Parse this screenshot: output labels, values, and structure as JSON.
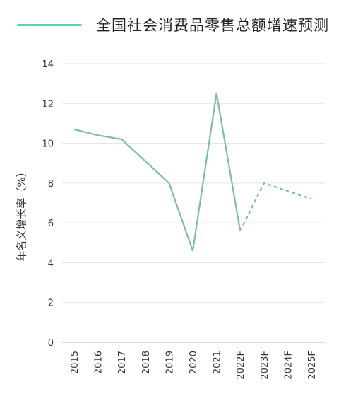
{
  "header": {
    "title": "全国社会消费品零售总额增速预测"
  },
  "accent_color": "#5fd3a6",
  "chart_data": {
    "type": "line",
    "title": "全国社会消费品零售总额增速预测",
    "ylabel": "年名义增长率（%）",
    "xlabel": "",
    "ylim": [
      0,
      14
    ],
    "yticks": [
      0,
      2,
      4,
      6,
      8,
      10,
      12,
      14
    ],
    "categories": [
      "2015",
      "2016",
      "2017",
      "2018",
      "2019",
      "2020",
      "2021",
      "2022F",
      "2023F",
      "2024F",
      "2025F"
    ],
    "grid": "horizontal",
    "line_color": "#7dbf9e",
    "series": [
      {
        "style": "solid",
        "x": [
          "2015",
          "2016",
          "2017",
          "2018",
          "2019",
          "2020",
          "2021",
          "2022F"
        ],
        "values": [
          10.7,
          10.4,
          10.2,
          9.1,
          8.0,
          4.6,
          12.5,
          5.6
        ]
      },
      {
        "style": "dashed",
        "x": [
          "2022F",
          "2023F",
          "2024F",
          "2025F"
        ],
        "values": [
          5.6,
          8.0,
          7.6,
          7.2
        ]
      }
    ]
  }
}
